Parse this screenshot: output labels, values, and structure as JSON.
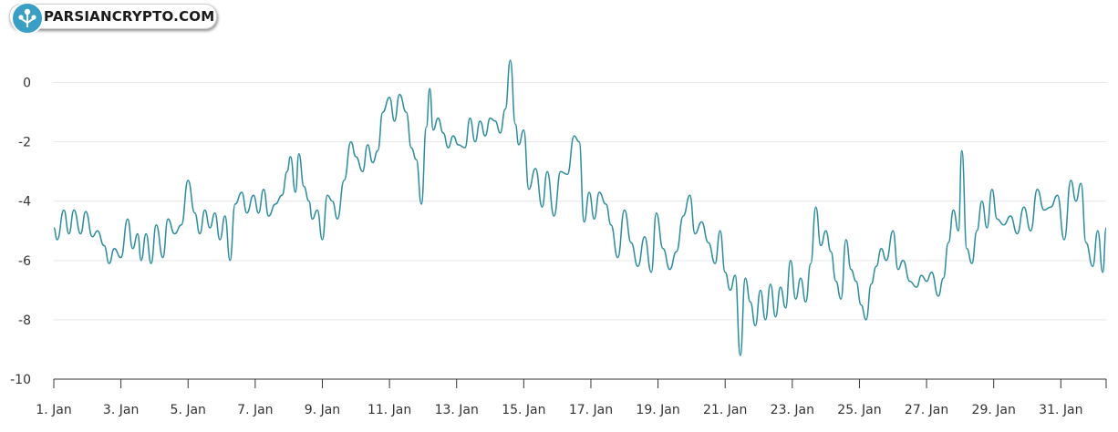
{
  "brand": {
    "name": "PARSIANCRYPTO.COM",
    "accent": "#3a9fc4"
  },
  "chart_data": {
    "type": "line",
    "title": "",
    "xlabel": "",
    "ylabel": "",
    "ylim": [
      -10,
      1
    ],
    "y_ticks": [
      0,
      -2,
      -4,
      -6,
      -8,
      -10
    ],
    "y_tick_labels": [
      "0",
      "-2",
      "-4",
      "-6",
      "-8",
      "-10"
    ],
    "x_range_days": [
      1,
      32.35
    ],
    "x_ticks": [
      1,
      3,
      5,
      7,
      9,
      11,
      13,
      15,
      17,
      19,
      21,
      23,
      25,
      27,
      29,
      31
    ],
    "x_tick_labels": [
      "1. Jan",
      "3. Jan",
      "5. Jan",
      "7. Jan",
      "9. Jan",
      "11. Jan",
      "13. Jan",
      "15. Jan",
      "17. Jan",
      "19. Jan",
      "21. Jan",
      "23. Jan",
      "25. Jan",
      "27. Jan",
      "29. Jan",
      "31. Jan"
    ],
    "grid": "horizontal",
    "line_color": "#2b8c9e",
    "series": [
      {
        "points": [
          [
            1.0,
            -4.9
          ],
          [
            1.1,
            -5.3
          ],
          [
            1.3,
            -4.3
          ],
          [
            1.45,
            -5.1
          ],
          [
            1.6,
            -4.3
          ],
          [
            1.8,
            -5.1
          ],
          [
            1.95,
            -4.35
          ],
          [
            2.15,
            -5.2
          ],
          [
            2.3,
            -5.0
          ],
          [
            2.5,
            -5.5
          ],
          [
            2.65,
            -6.1
          ],
          [
            2.8,
            -5.6
          ],
          [
            3.0,
            -5.9
          ],
          [
            3.2,
            -4.6
          ],
          [
            3.35,
            -5.6
          ],
          [
            3.5,
            -5.1
          ],
          [
            3.6,
            -6.0
          ],
          [
            3.75,
            -5.1
          ],
          [
            3.9,
            -6.1
          ],
          [
            4.05,
            -4.8
          ],
          [
            4.25,
            -5.9
          ],
          [
            4.4,
            -4.6
          ],
          [
            4.6,
            -5.1
          ],
          [
            4.8,
            -4.8
          ],
          [
            5.0,
            -3.3
          ],
          [
            5.2,
            -4.4
          ],
          [
            5.35,
            -5.1
          ],
          [
            5.5,
            -4.3
          ],
          [
            5.65,
            -4.9
          ],
          [
            5.8,
            -4.4
          ],
          [
            5.95,
            -5.3
          ],
          [
            6.1,
            -4.5
          ],
          [
            6.25,
            -6.0
          ],
          [
            6.4,
            -4.1
          ],
          [
            6.6,
            -3.7
          ],
          [
            6.75,
            -4.4
          ],
          [
            6.95,
            -3.8
          ],
          [
            7.1,
            -4.4
          ],
          [
            7.25,
            -3.6
          ],
          [
            7.4,
            -4.5
          ],
          [
            7.6,
            -4.1
          ],
          [
            7.8,
            -3.8
          ],
          [
            7.95,
            -3.0
          ],
          [
            8.05,
            -2.5
          ],
          [
            8.2,
            -3.7
          ],
          [
            8.3,
            -2.4
          ],
          [
            8.45,
            -3.5
          ],
          [
            8.6,
            -4.0
          ],
          [
            8.7,
            -4.6
          ],
          [
            8.85,
            -4.3
          ],
          [
            9.0,
            -5.3
          ],
          [
            9.15,
            -3.8
          ],
          [
            9.3,
            -4.0
          ],
          [
            9.45,
            -4.6
          ],
          [
            9.65,
            -3.3
          ],
          [
            9.85,
            -2.0
          ],
          [
            10.0,
            -2.5
          ],
          [
            10.2,
            -3.0
          ],
          [
            10.35,
            -2.1
          ],
          [
            10.5,
            -2.7
          ],
          [
            10.65,
            -2.3
          ],
          [
            10.8,
            -1.0
          ],
          [
            11.0,
            -0.5
          ],
          [
            11.15,
            -1.3
          ],
          [
            11.3,
            -0.4
          ],
          [
            11.5,
            -1.0
          ],
          [
            11.65,
            -2.2
          ],
          [
            11.8,
            -2.6
          ],
          [
            11.95,
            -4.1
          ],
          [
            12.1,
            -1.5
          ],
          [
            12.2,
            -0.2
          ],
          [
            12.3,
            -1.6
          ],
          [
            12.45,
            -1.2
          ],
          [
            12.6,
            -1.7
          ],
          [
            12.75,
            -2.2
          ],
          [
            12.9,
            -1.8
          ],
          [
            13.05,
            -2.1
          ],
          [
            13.25,
            -2.2
          ],
          [
            13.4,
            -1.2
          ],
          [
            13.55,
            -2.0
          ],
          [
            13.7,
            -1.3
          ],
          [
            13.85,
            -1.8
          ],
          [
            14.0,
            -1.2
          ],
          [
            14.15,
            -1.3
          ],
          [
            14.3,
            -1.7
          ],
          [
            14.45,
            -0.9
          ],
          [
            14.6,
            0.75
          ],
          [
            14.75,
            -1.4
          ],
          [
            14.85,
            -2.1
          ],
          [
            15.0,
            -1.6
          ],
          [
            15.15,
            -3.6
          ],
          [
            15.35,
            -2.9
          ],
          [
            15.55,
            -4.2
          ],
          [
            15.7,
            -3.0
          ],
          [
            15.9,
            -4.5
          ],
          [
            16.1,
            -3.0
          ],
          [
            16.3,
            -3.1
          ],
          [
            16.5,
            -1.8
          ],
          [
            16.65,
            -2.0
          ],
          [
            16.8,
            -4.7
          ],
          [
            16.95,
            -3.7
          ],
          [
            17.1,
            -4.6
          ],
          [
            17.25,
            -3.7
          ],
          [
            17.45,
            -4.1
          ],
          [
            17.6,
            -4.8
          ],
          [
            17.8,
            -5.9
          ],
          [
            18.0,
            -4.3
          ],
          [
            18.2,
            -5.4
          ],
          [
            18.4,
            -6.2
          ],
          [
            18.6,
            -5.2
          ],
          [
            18.8,
            -6.4
          ],
          [
            18.95,
            -4.4
          ],
          [
            19.15,
            -5.6
          ],
          [
            19.35,
            -6.3
          ],
          [
            19.55,
            -5.7
          ],
          [
            19.75,
            -4.5
          ],
          [
            19.95,
            -3.8
          ],
          [
            20.1,
            -5.1
          ],
          [
            20.3,
            -4.7
          ],
          [
            20.5,
            -5.4
          ],
          [
            20.7,
            -6.1
          ],
          [
            20.85,
            -5.0
          ],
          [
            21.0,
            -6.4
          ],
          [
            21.15,
            -7.0
          ],
          [
            21.3,
            -6.5
          ],
          [
            21.45,
            -9.2
          ],
          [
            21.6,
            -6.6
          ],
          [
            21.75,
            -7.4
          ],
          [
            21.9,
            -8.2
          ],
          [
            22.05,
            -7.0
          ],
          [
            22.2,
            -8.0
          ],
          [
            22.35,
            -6.8
          ],
          [
            22.5,
            -7.9
          ],
          [
            22.65,
            -6.9
          ],
          [
            22.8,
            -7.6
          ],
          [
            22.95,
            -6.0
          ],
          [
            23.1,
            -7.3
          ],
          [
            23.25,
            -6.6
          ],
          [
            23.4,
            -7.4
          ],
          [
            23.55,
            -6.1
          ],
          [
            23.7,
            -4.2
          ],
          [
            23.85,
            -5.5
          ],
          [
            24.0,
            -5.0
          ],
          [
            24.15,
            -5.7
          ],
          [
            24.3,
            -6.7
          ],
          [
            24.45,
            -7.3
          ],
          [
            24.6,
            -5.3
          ],
          [
            24.75,
            -6.3
          ],
          [
            24.9,
            -6.7
          ],
          [
            25.05,
            -7.5
          ],
          [
            25.2,
            -8.0
          ],
          [
            25.35,
            -6.8
          ],
          [
            25.5,
            -6.2
          ],
          [
            25.65,
            -5.6
          ],
          [
            25.8,
            -6.0
          ],
          [
            26.0,
            -5.0
          ],
          [
            26.15,
            -6.3
          ],
          [
            26.3,
            -6.0
          ],
          [
            26.5,
            -6.7
          ],
          [
            26.7,
            -6.9
          ],
          [
            26.85,
            -6.5
          ],
          [
            27.0,
            -6.7
          ],
          [
            27.15,
            -6.4
          ],
          [
            27.35,
            -7.2
          ],
          [
            27.5,
            -6.6
          ],
          [
            27.65,
            -5.4
          ],
          [
            27.8,
            -4.3
          ],
          [
            27.95,
            -5.0
          ],
          [
            28.05,
            -2.3
          ],
          [
            28.2,
            -5.6
          ],
          [
            28.35,
            -6.1
          ],
          [
            28.5,
            -5.0
          ],
          [
            28.65,
            -4.0
          ],
          [
            28.8,
            -4.9
          ],
          [
            28.95,
            -3.6
          ],
          [
            29.1,
            -4.6
          ],
          [
            29.3,
            -4.8
          ],
          [
            29.5,
            -4.5
          ],
          [
            29.7,
            -5.1
          ],
          [
            29.9,
            -4.2
          ],
          [
            30.1,
            -5.0
          ],
          [
            30.3,
            -3.6
          ],
          [
            30.5,
            -4.3
          ],
          [
            30.7,
            -4.2
          ],
          [
            30.9,
            -3.8
          ],
          [
            31.1,
            -5.3
          ],
          [
            31.3,
            -3.3
          ],
          [
            31.45,
            -4.0
          ],
          [
            31.6,
            -3.4
          ],
          [
            31.75,
            -5.4
          ],
          [
            31.95,
            -6.2
          ],
          [
            32.1,
            -5.0
          ],
          [
            32.25,
            -6.4
          ],
          [
            32.35,
            -4.9
          ]
        ]
      }
    ]
  }
}
